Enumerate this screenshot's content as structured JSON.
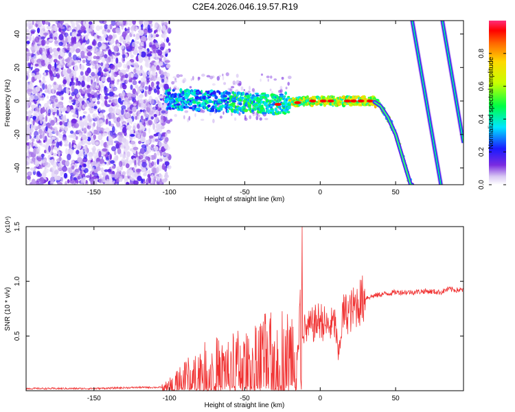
{
  "page": {
    "title": "C2E4.2026.046.19.57.R19"
  },
  "chart_data": [
    {
      "type": "heatmap",
      "xlabel": "Height of straight line (km)",
      "ylabel": "Frequency (Hz)",
      "xlim": [
        -195,
        95
      ],
      "ylim": [
        -50,
        48
      ],
      "xticks": [
        -150,
        -100,
        -50,
        0,
        50
      ],
      "yticks": [
        -40,
        -20,
        0,
        20,
        40
      ],
      "colorbar": {
        "label": "Normalized spectral amplitude",
        "range": [
          0,
          1
        ],
        "ticks": [
          "0.0",
          "0.2",
          "0.4",
          "0.6",
          "0.8"
        ],
        "tick_values": [
          0.0,
          0.2,
          0.4,
          0.6,
          0.8
        ]
      },
      "ridge": {
        "description_points": [
          [
            -100,
            1
          ],
          [
            -75,
            0
          ],
          [
            -50,
            -1
          ],
          [
            -30,
            -2
          ],
          [
            -10,
            0
          ],
          [
            0,
            0
          ],
          [
            20,
            0
          ],
          [
            35,
            0
          ],
          [
            40,
            -3
          ],
          [
            45,
            -10
          ],
          [
            50,
            -20
          ],
          [
            55,
            -35
          ],
          [
            60,
            -50
          ]
        ],
        "aliased_line_1": [
          [
            61,
            48
          ],
          [
            80,
            -50
          ]
        ],
        "aliased_line_2": [
          [
            81,
            48
          ],
          [
            95,
            -25
          ]
        ]
      }
    },
    {
      "type": "line",
      "xlabel": "Height of straight line (km)",
      "ylabel": "SNR (10 * v/v)",
      "exponent_label": "(x10⁴)",
      "xlim": [
        -195,
        95
      ],
      "ylim": [
        0,
        1.5
      ],
      "xticks": [
        -150,
        -100,
        -50,
        0,
        50
      ],
      "yticks": [
        0.5,
        1.0,
        1.5
      ],
      "ytick_labels": [
        "0.5",
        "1.0",
        "1.5"
      ],
      "color": "#f03030",
      "series": [
        {
          "name": "SNR",
          "x": [
            -195,
            -150,
            -120,
            -105,
            -100,
            -95,
            -90,
            -85,
            -80,
            -75,
            -70,
            -65,
            -60,
            -55,
            -50,
            -45,
            -40,
            -35,
            -30,
            -25,
            -20,
            -15,
            -12,
            -10,
            -5,
            0,
            5,
            10,
            12,
            15,
            20,
            25,
            30,
            40,
            50,
            60,
            70,
            80,
            85,
            90,
            95
          ],
          "y": [
            0.02,
            0.02,
            0.03,
            0.03,
            0.05,
            0.08,
            0.12,
            0.15,
            0.18,
            0.2,
            0.22,
            0.2,
            0.22,
            0.25,
            0.22,
            0.28,
            0.3,
            0.32,
            0.3,
            0.35,
            0.32,
            0.38,
            0.6,
            0.55,
            0.6,
            0.65,
            0.58,
            0.62,
            0.3,
            0.7,
            0.72,
            0.8,
            0.85,
            0.88,
            0.9,
            0.9,
            0.91,
            0.9,
            0.93,
            0.92,
            0.92
          ],
          "spike": {
            "x": -12,
            "y": 1.5
          }
        }
      ]
    }
  ]
}
